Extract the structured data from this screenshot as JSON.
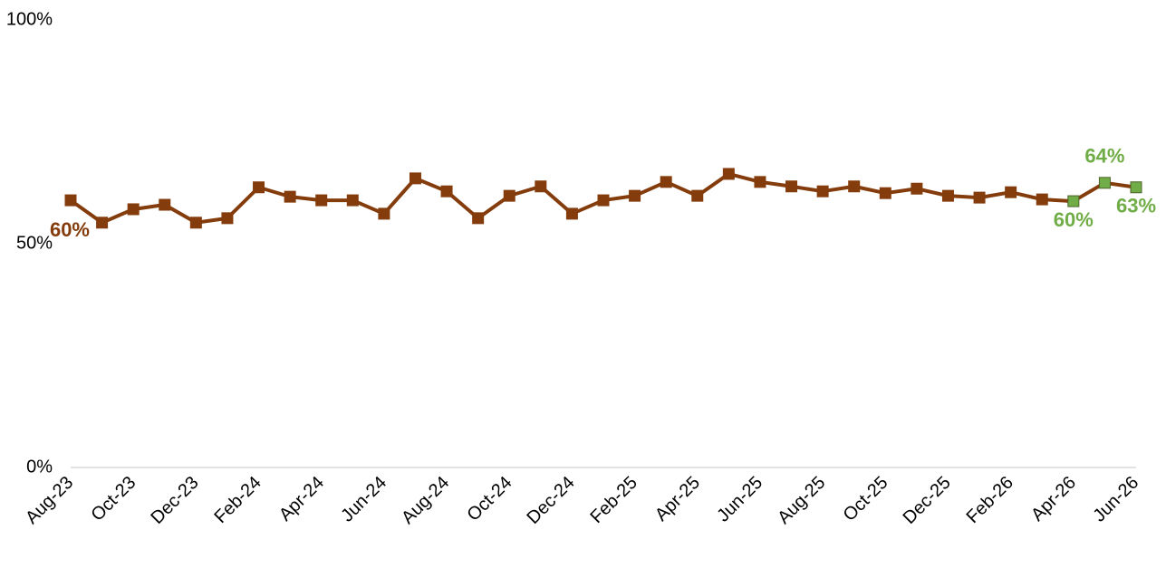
{
  "chart_data": {
    "type": "line",
    "categories": [
      "Aug-23",
      null,
      "Oct-23",
      null,
      "Dec-23",
      null,
      "Feb-24",
      null,
      "Apr-24",
      null,
      "Jun-24",
      null,
      "Aug-24",
      null,
      "Oct-24",
      null,
      "Dec-24",
      null,
      "Feb-25",
      null,
      "Apr-25",
      null,
      "Jun-25",
      null,
      "Aug-25",
      null,
      "Oct-25",
      null,
      "Dec-25",
      null,
      "Feb-26",
      null,
      "Apr-26",
      null,
      "Jun-26"
    ],
    "series": [
      {
        "color": "#843c0c",
        "values": [
          59.7,
          54.7,
          57.7,
          58.7,
          54.7,
          55.7,
          62.6,
          60.5,
          59.7,
          59.7,
          56.7,
          64.6,
          61.7,
          55.7,
          60.7,
          62.8,
          56.7,
          59.7,
          60.7,
          63.8,
          60.7,
          65.6,
          63.8,
          62.8,
          61.7,
          62.8,
          61.3,
          62.3,
          60.7,
          60.3,
          61.5,
          59.9,
          59.5,
          63.6,
          62.6
        ],
        "value_labels": [
          "60%",
          null,
          null,
          null,
          null,
          null,
          null,
          null,
          null,
          null,
          null,
          null,
          null,
          null,
          null,
          null,
          null,
          null,
          null,
          null,
          null,
          null,
          null,
          null,
          null,
          null,
          null,
          null,
          null,
          null,
          null,
          null,
          "60%",
          "64%",
          "63%"
        ],
        "marker_colors": [
          "#843c0c",
          "#843c0c",
          "#843c0c",
          "#843c0c",
          "#843c0c",
          "#843c0c",
          "#843c0c",
          "#843c0c",
          "#843c0c",
          "#843c0c",
          "#843c0c",
          "#843c0c",
          "#843c0c",
          "#843c0c",
          "#843c0c",
          "#843c0c",
          "#843c0c",
          "#843c0c",
          "#843c0c",
          "#843c0c",
          "#843c0c",
          "#843c0c",
          "#843c0c",
          "#843c0c",
          "#843c0c",
          "#843c0c",
          "#843c0c",
          "#843c0c",
          "#843c0c",
          "#843c0c",
          "#843c0c",
          "#843c0c",
          "#70ad47",
          "#70ad47",
          "#70ad47"
        ]
      }
    ],
    "ylim": [
      0,
      100
    ],
    "yticks": [
      {
        "value": 0,
        "label": "0%"
      },
      {
        "value": 50,
        "label": "50%"
      },
      {
        "value": 100,
        "label": "100%"
      }
    ],
    "grid": false
  }
}
